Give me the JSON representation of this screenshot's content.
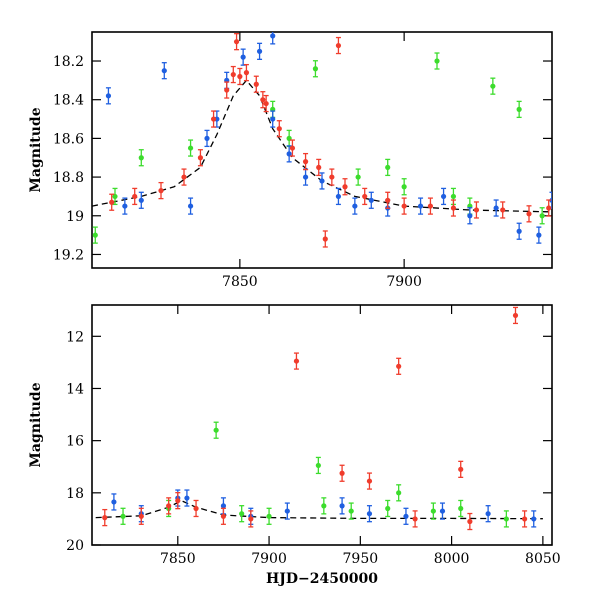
{
  "colors": {
    "red": "#f03c2c",
    "green": "#3cdc2c",
    "blue": "#1f5fe0",
    "model": "#000000"
  },
  "chart_data": [
    {
      "type": "scatter",
      "title": "",
      "xlabel": "",
      "ylabel": "Magnitude",
      "xlim": [
        7805,
        7945
      ],
      "ylim": [
        19.27,
        18.05
      ],
      "y_inverted": true,
      "xticks": [
        7850,
        7900
      ],
      "yticks": [
        18.2,
        18.4,
        18.6,
        18.8,
        19,
        19.2
      ],
      "ytick_labels": [
        "18.2",
        "18.4",
        "18.6",
        "18.8",
        "19",
        "19.2"
      ],
      "grid": false,
      "legend": null,
      "series": [
        {
          "color": "red",
          "points": [
            [
              7811,
              18.93
            ],
            [
              7818,
              18.9
            ],
            [
              7826,
              18.87
            ],
            [
              7833,
              18.8
            ],
            [
              7838,
              18.7
            ],
            [
              7842,
              18.5
            ],
            [
              7846,
              18.35
            ],
            [
              7848,
              18.27
            ],
            [
              7850,
              18.28
            ],
            [
              7852,
              18.26
            ],
            [
              7855,
              18.32
            ],
            [
              7858,
              18.42
            ],
            [
              7862,
              18.55
            ],
            [
              7866,
              18.65
            ],
            [
              7870,
              18.72
            ],
            [
              7874,
              18.75
            ],
            [
              7878,
              18.8
            ],
            [
              7882,
              18.85
            ],
            [
              7888,
              18.9
            ],
            [
              7895,
              18.92
            ],
            [
              7900,
              18.95
            ],
            [
              7908,
              18.95
            ],
            [
              7915,
              18.96
            ],
            [
              7922,
              18.97
            ],
            [
              7930,
              18.97
            ],
            [
              7938,
              18.99
            ],
            [
              7944,
              18.96
            ],
            [
              7849,
              18.1
            ],
            [
              7880,
              18.12
            ],
            [
              7857,
              18.4
            ],
            [
              7876,
              19.12
            ]
          ]
        },
        {
          "color": "green",
          "points": [
            [
              7806,
              19.1
            ],
            [
              7812,
              18.9
            ],
            [
              7820,
              18.7
            ],
            [
              7835,
              18.65
            ],
            [
              7860,
              18.45
            ],
            [
              7865,
              18.6
            ],
            [
              7873,
              18.24
            ],
            [
              7886,
              18.8
            ],
            [
              7900,
              18.85
            ],
            [
              7910,
              18.2
            ],
            [
              7920,
              18.95
            ],
            [
              7927,
              18.33
            ],
            [
              7935,
              18.45
            ],
            [
              7942,
              19.0
            ],
            [
              7915,
              18.9
            ],
            [
              7895,
              18.75
            ]
          ]
        },
        {
          "color": "blue",
          "points": [
            [
              7810,
              18.38
            ],
            [
              7815,
              18.95
            ],
            [
              7820,
              18.92
            ],
            [
              7827,
              18.25
            ],
            [
              7835,
              18.95
            ],
            [
              7840,
              18.6
            ],
            [
              7843,
              18.5
            ],
            [
              7846,
              18.3
            ],
            [
              7851,
              18.18
            ],
            [
              7856,
              18.15
            ],
            [
              7860,
              18.5
            ],
            [
              7865,
              18.68
            ],
            [
              7870,
              18.8
            ],
            [
              7875,
              18.82
            ],
            [
              7880,
              18.9
            ],
            [
              7885,
              18.95
            ],
            [
              7890,
              18.92
            ],
            [
              7895,
              18.96
            ],
            [
              7905,
              18.95
            ],
            [
              7912,
              18.9
            ],
            [
              7920,
              19.0
            ],
            [
              7928,
              18.96
            ],
            [
              7935,
              19.08
            ],
            [
              7941,
              19.1
            ],
            [
              7945,
              18.92
            ],
            [
              7860,
              18.07
            ]
          ]
        }
      ],
      "model_curve": [
        [
          7805,
          18.95
        ],
        [
          7820,
          18.9
        ],
        [
          7830,
          18.85
        ],
        [
          7838,
          18.75
        ],
        [
          7843,
          18.58
        ],
        [
          7848,
          18.38
        ],
        [
          7852,
          18.3
        ],
        [
          7856,
          18.38
        ],
        [
          7860,
          18.55
        ],
        [
          7866,
          18.7
        ],
        [
          7875,
          18.82
        ],
        [
          7885,
          18.9
        ],
        [
          7900,
          18.95
        ],
        [
          7920,
          18.97
        ],
        [
          7945,
          18.98
        ]
      ]
    },
    {
      "type": "scatter",
      "title": "",
      "xlabel": "HJD−2450000",
      "ylabel": "Magnitude",
      "xlim": [
        7803,
        8055
      ],
      "ylim": [
        20,
        10.8
      ],
      "y_inverted": true,
      "xticks": [
        7850,
        7900,
        7950,
        8000,
        8050
      ],
      "yticks": [
        12,
        14,
        16,
        18,
        20
      ],
      "ytick_labels": [
        "12",
        "14",
        "16",
        "18",
        "20"
      ],
      "grid": false,
      "legend": null,
      "series": [
        {
          "color": "red",
          "points": [
            [
              7810,
              18.95
            ],
            [
              7830,
              18.9
            ],
            [
              7845,
              18.5
            ],
            [
              7850,
              18.3
            ],
            [
              7860,
              18.6
            ],
            [
              7875,
              18.9
            ],
            [
              7890,
              19.0
            ],
            [
              7915,
              12.95
            ],
            [
              7940,
              17.25
            ],
            [
              7955,
              17.55
            ],
            [
              7971,
              13.15
            ],
            [
              7980,
              19.0
            ],
            [
              8005,
              17.1
            ],
            [
              8010,
              19.1
            ],
            [
              8035,
              11.2
            ],
            [
              8040,
              19.0
            ]
          ]
        },
        {
          "color": "green",
          "points": [
            [
              7820,
              18.9
            ],
            [
              7845,
              18.6
            ],
            [
              7871,
              15.6
            ],
            [
              7885,
              18.8
            ],
            [
              7900,
              18.9
            ],
            [
              7927,
              16.95
            ],
            [
              7930,
              18.5
            ],
            [
              7945,
              18.7
            ],
            [
              7965,
              18.6
            ],
            [
              7971,
              18.0
            ],
            [
              7990,
              18.7
            ],
            [
              8005,
              18.6
            ],
            [
              8030,
              19.0
            ]
          ]
        },
        {
          "color": "blue",
          "points": [
            [
              7815,
              18.35
            ],
            [
              7830,
              18.8
            ],
            [
              7850,
              18.2
            ],
            [
              7855,
              18.2
            ],
            [
              7875,
              18.5
            ],
            [
              7890,
              18.9
            ],
            [
              7910,
              18.7
            ],
            [
              7940,
              18.5
            ],
            [
              7955,
              18.8
            ],
            [
              7975,
              18.9
            ],
            [
              7995,
              18.7
            ],
            [
              8020,
              18.8
            ],
            [
              8045,
              19.0
            ]
          ]
        }
      ],
      "model_curve": [
        [
          7805,
          18.95
        ],
        [
          7830,
          18.88
        ],
        [
          7845,
          18.55
        ],
        [
          7852,
          18.3
        ],
        [
          7860,
          18.55
        ],
        [
          7875,
          18.85
        ],
        [
          7900,
          18.95
        ],
        [
          7950,
          18.98
        ],
        [
          8000,
          18.98
        ],
        [
          8050,
          18.99
        ]
      ]
    }
  ]
}
